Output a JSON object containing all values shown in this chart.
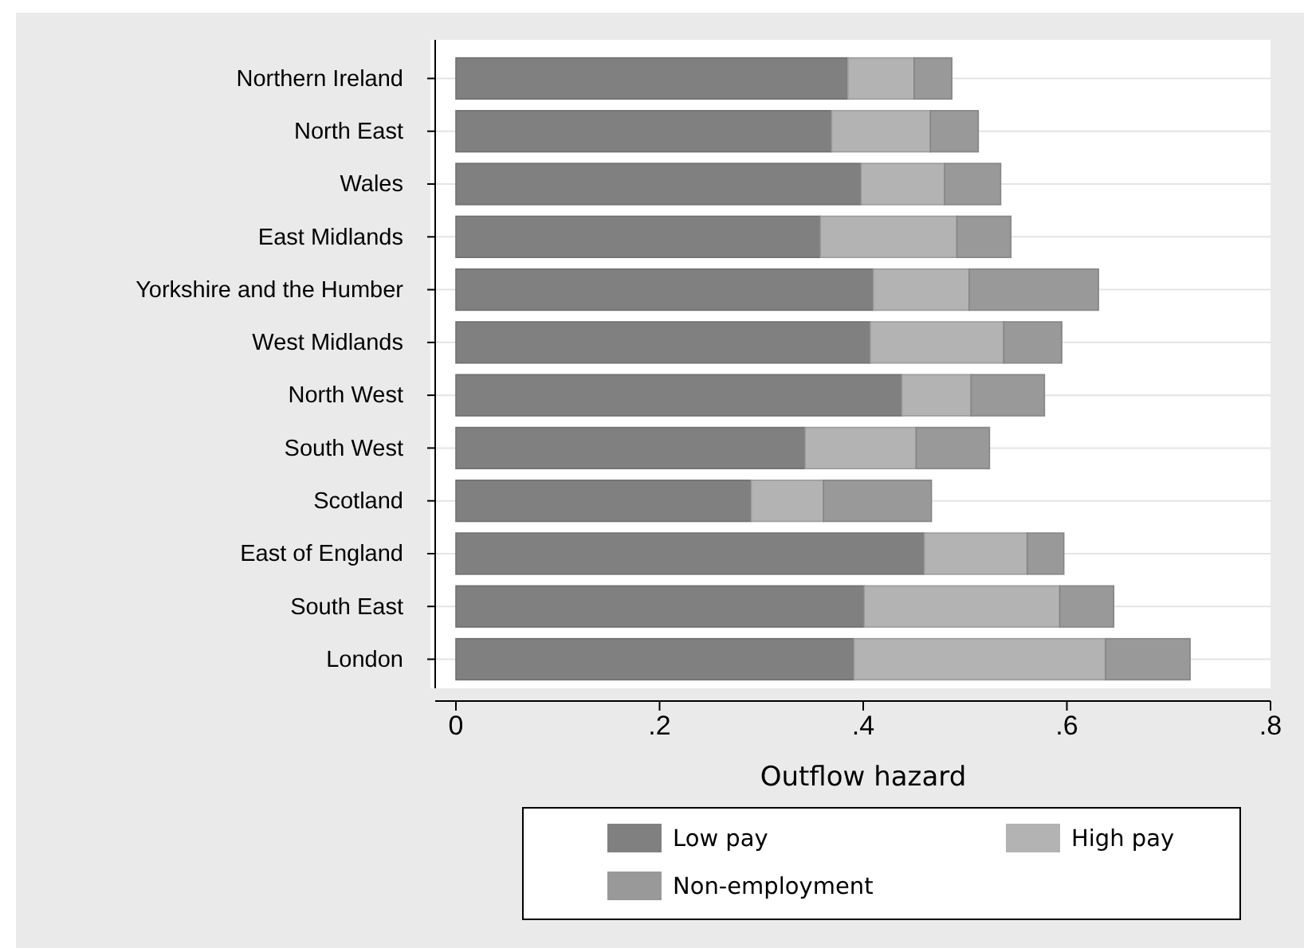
{
  "chart_data": {
    "type": "bar",
    "orientation": "horizontal",
    "stacked": true,
    "xlabel": "Outflow hazard",
    "categories": [
      "Northern Ireland",
      "North East",
      "Wales",
      "East Midlands",
      "Yorkshire and the Humber",
      "West Midlands",
      "North West",
      "South West",
      "Scotland",
      "East of England",
      "South East",
      "London"
    ],
    "series": [
      {
        "name": "Low pay",
        "color": "#808080",
        "values": [
          0.385,
          0.369,
          0.398,
          0.358,
          0.41,
          0.407,
          0.438,
          0.343,
          0.29,
          0.46,
          0.401,
          0.391
        ]
      },
      {
        "name": "High pay",
        "color": "#b3b3b3",
        "values": [
          0.065,
          0.097,
          0.082,
          0.134,
          0.094,
          0.131,
          0.068,
          0.109,
          0.071,
          0.101,
          0.192,
          0.247
        ]
      },
      {
        "name": "Non-employment",
        "color": "#999999",
        "values": [
          0.037,
          0.047,
          0.055,
          0.053,
          0.127,
          0.057,
          0.072,
          0.072,
          0.106,
          0.036,
          0.053,
          0.083
        ]
      }
    ],
    "xlim": [
      0,
      0.8
    ],
    "xticks": [
      0,
      {
        "value": 0.2,
        "label": ".2"
      },
      {
        "value": 0.4,
        "label": ".4"
      },
      {
        "value": 0.6,
        "label": ".6"
      },
      {
        "value": 0.8,
        "label": ".8"
      }
    ],
    "grid": "y",
    "legend": "bottom"
  }
}
